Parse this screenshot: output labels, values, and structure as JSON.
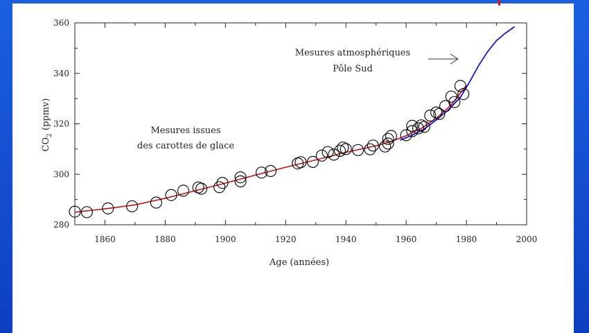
{
  "colors": {
    "background": "#1455d8",
    "panel": "#ffffff",
    "fit_line": "#cc1010",
    "atmospheric_line": "#1414e0",
    "markers": "#111111"
  },
  "chart_data": {
    "type": "scatter",
    "xlabel": "Age (années)",
    "ylabel_main": "CO",
    "ylabel_sub": "2",
    "ylabel_unit": " (ppmv)",
    "xlim": [
      1850,
      2000
    ],
    "ylim": [
      280,
      360
    ],
    "xticks": [
      1860,
      1880,
      1900,
      1920,
      1940,
      1960,
      1980,
      2000
    ],
    "yticks": [
      280,
      300,
      320,
      340,
      360
    ],
    "grid": false,
    "annotations": {
      "ice_core_line1": "Mesures issues",
      "ice_core_line2": "des carottes de glace",
      "atmospheric_line1": "Mesures atmosphériques",
      "atmospheric_line2": "Pôle Sud"
    },
    "series": [
      {
        "kind": "markers",
        "points": [
          [
            1850,
            285.2
          ],
          [
            1854,
            285.0
          ],
          [
            1861,
            286.5
          ],
          [
            1869,
            287.3
          ],
          [
            1877,
            288.8
          ],
          [
            1882,
            291.8
          ],
          [
            1886,
            293.5
          ],
          [
            1891,
            294.8
          ],
          [
            1892,
            294.3
          ],
          [
            1898,
            294.9
          ],
          [
            1899,
            296.6
          ],
          [
            1905,
            297.2
          ],
          [
            1905,
            298.8
          ],
          [
            1912,
            300.7
          ],
          [
            1915,
            301.3
          ],
          [
            1924,
            304.3
          ],
          [
            1925,
            304.8
          ],
          [
            1929,
            304.9
          ],
          [
            1932,
            307.4
          ],
          [
            1934,
            308.8
          ],
          [
            1936,
            307.8
          ],
          [
            1938,
            309.3
          ],
          [
            1939,
            310.6
          ],
          [
            1940,
            310.0
          ],
          [
            1944,
            309.6
          ],
          [
            1948,
            309.9
          ],
          [
            1949,
            311.4
          ],
          [
            1953,
            311.0
          ],
          [
            1954,
            312.2
          ],
          [
            1954,
            314.0
          ],
          [
            1955,
            315.2
          ],
          [
            1960,
            315.5
          ],
          [
            1962,
            317.1
          ],
          [
            1962,
            319.2
          ],
          [
            1964,
            318.2
          ],
          [
            1965,
            319.4
          ],
          [
            1966,
            318.8
          ],
          [
            1968,
            323.3
          ],
          [
            1970,
            324.5
          ],
          [
            1971,
            323.9
          ],
          [
            1973,
            327.0
          ],
          [
            1975,
            330.8
          ],
          [
            1976,
            328.6
          ],
          [
            1978,
            335.0
          ],
          [
            1979,
            331.8
          ]
        ]
      },
      {
        "kind": "fit-line",
        "points": [
          [
            1850,
            285.0
          ],
          [
            1860,
            286.3
          ],
          [
            1870,
            287.9
          ],
          [
            1880,
            290.5
          ],
          [
            1890,
            293.5
          ],
          [
            1900,
            296.5
          ],
          [
            1910,
            299.7
          ],
          [
            1920,
            302.8
          ],
          [
            1930,
            305.7
          ],
          [
            1940,
            308.7
          ],
          [
            1950,
            311.3
          ],
          [
            1955,
            313.0
          ],
          [
            1960,
            315.3
          ],
          [
            1965,
            318.2
          ],
          [
            1970,
            322.2
          ],
          [
            1975,
            327.5
          ],
          [
            1980,
            335.3
          ]
        ]
      },
      {
        "kind": "atmospheric-line",
        "points": [
          [
            1958,
            313.5
          ],
          [
            1962,
            315.5
          ],
          [
            1966,
            318.0
          ],
          [
            1970,
            321.5
          ],
          [
            1974,
            325.5
          ],
          [
            1978,
            330.5
          ],
          [
            1981,
            336.5
          ],
          [
            1984,
            343.0
          ],
          [
            1987,
            348.5
          ],
          [
            1990,
            353.0
          ],
          [
            1993,
            356.0
          ],
          [
            1996,
            358.5
          ]
        ]
      }
    ]
  }
}
